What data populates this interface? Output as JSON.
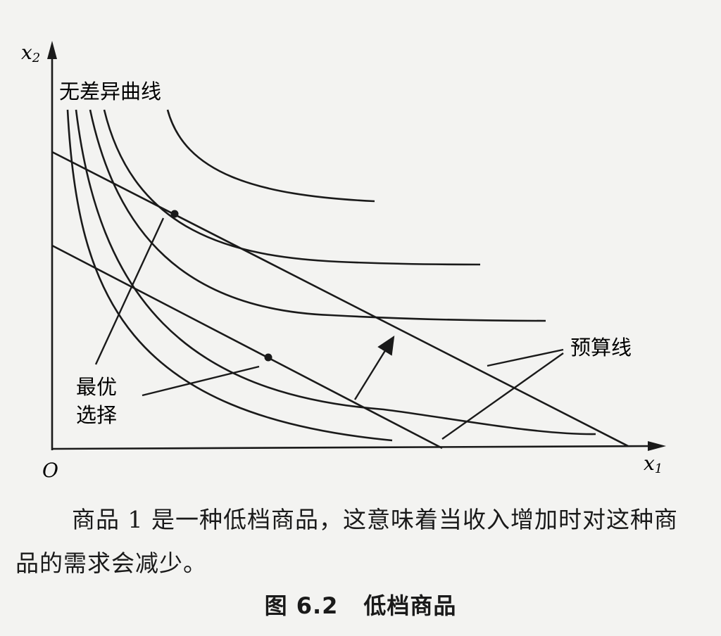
{
  "diagram": {
    "axis_y_label": "x",
    "axis_y_sub": "2",
    "axis_x_label": "x",
    "axis_x_sub": "1",
    "origin_label": "O",
    "indifference_label": "无差异曲线",
    "budget_label": "预算线",
    "optimal_label_line1": "最优",
    "optimal_label_line2": "选择"
  },
  "caption": "商品 1 是一种低档商品，这意味着当收入增加时对这种商品的需求会减少。",
  "figure_number": "图 6.2",
  "figure_title": "低档商品",
  "colors": {
    "ink": "#1a1a1a",
    "paper": "#f3f3f1"
  }
}
